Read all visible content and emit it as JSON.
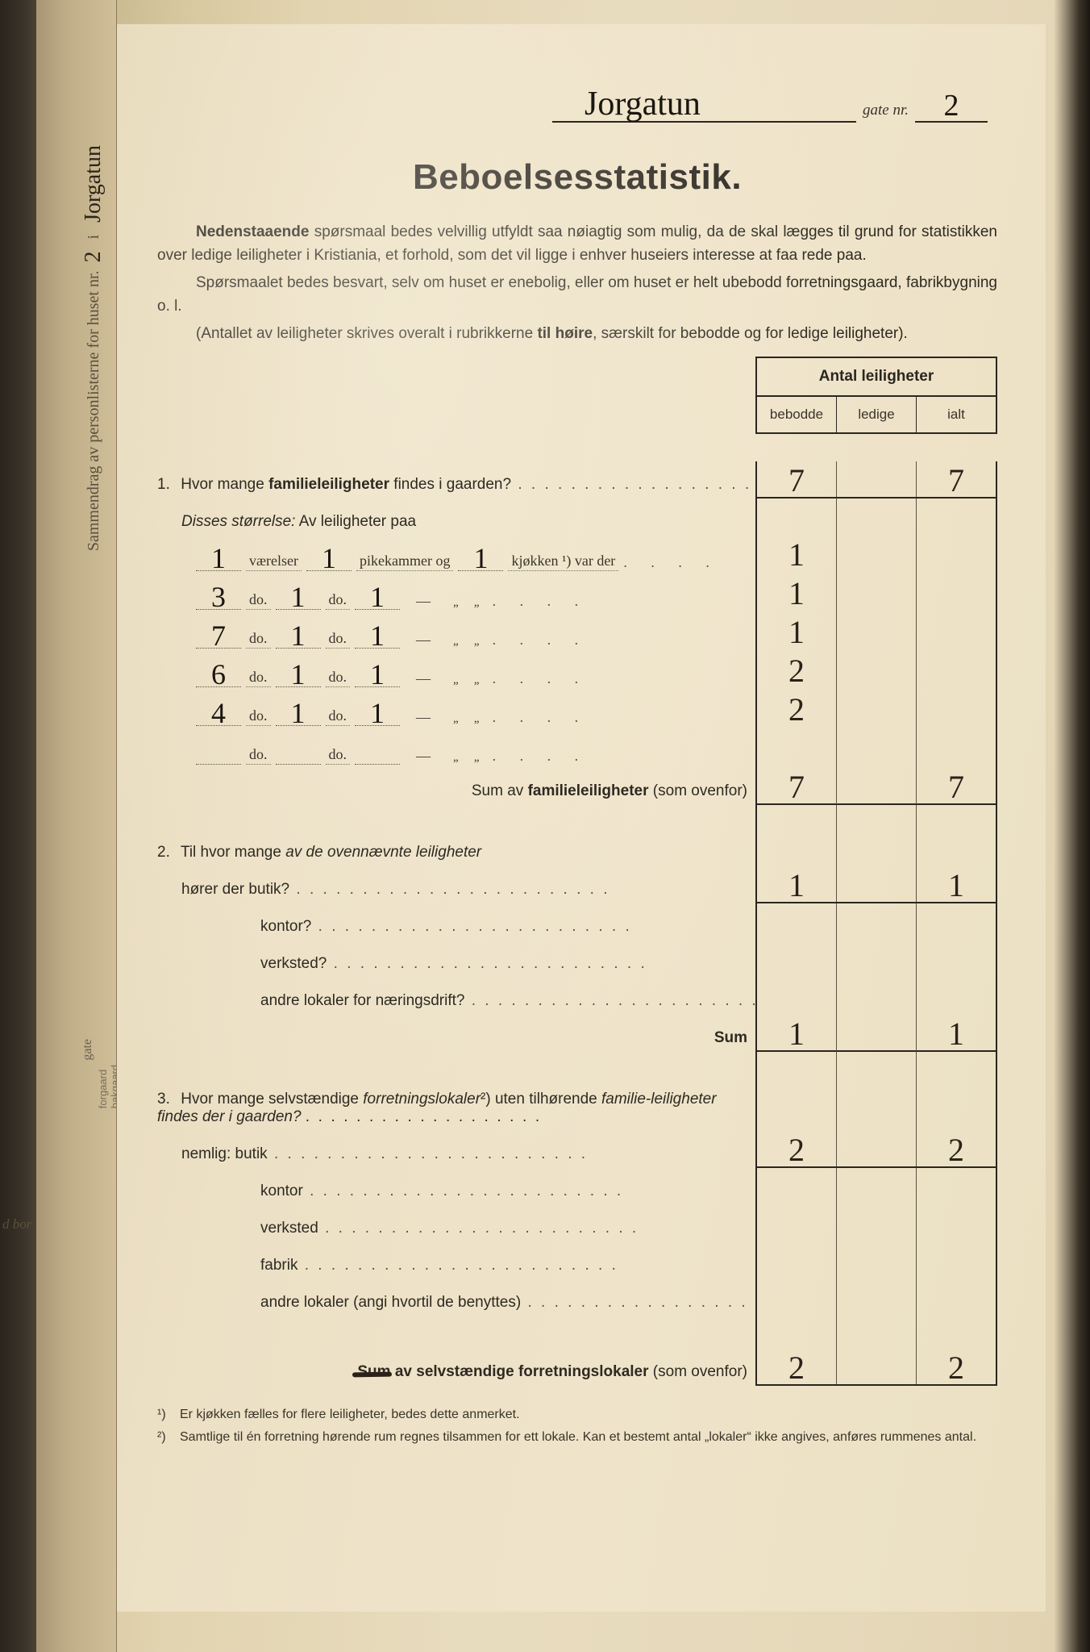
{
  "colors": {
    "paper": "#ece0c5",
    "paper_shadow": "#d8c8a0",
    "binding": "#2a241c",
    "ink_print": "#2a2620",
    "ink_handwriting": "#1a1610",
    "rule_line": "#2a2620",
    "dotted": "#5a5242"
  },
  "typography": {
    "title_family": "Arial, sans-serif",
    "title_size_pt": 33,
    "body_size_pt": 14,
    "handwriting_family": "Brush Script MT"
  },
  "side": {
    "summary_prefix": "Sammendrag av personlisterne for huset nr.",
    "house_nr_hw": "2",
    "i": "i",
    "street_hw": "Jorgatun",
    "gate": "gate",
    "forgaard": "forgaard",
    "bakgaard": "bakgaard",
    "bor": "d bor"
  },
  "header": {
    "street_hw": "Jorgatun",
    "gate_label": "gate nr.",
    "gate_nr_hw": "2"
  },
  "title": "Beboelsesstatistik.",
  "intro": {
    "p1": "Nedenstaaende spørsmaal bedes velvillig utfyldt saa nøiagtig som mulig, da de skal lægges til grund for statistikken over ledige leiligheter i Kristiania, et forhold, som det vil ligge i enhver huseiers interesse at faa rede paa.",
    "p2": "Spørsmaalet bedes besvart, selv om huset er enebolig, eller om huset er helt ubebodd forretningsgaard, fabrikbygning o. l.",
    "p3_a": "(Antallet av leiligheter skrives overalt i rubrikkerne ",
    "p3_b": "til høire",
    "p3_c": ", særskilt for bebodde og for ledige leiligheter)."
  },
  "table_header": {
    "title": "Antal leiligheter",
    "c1": "bebodde",
    "c2": "ledige",
    "c3": "ialt"
  },
  "q1": {
    "num": "1.",
    "text_a": "Hvor mange ",
    "text_b": "familieleiligheter",
    "text_c": " findes i gaarden?",
    "bebodde": "7",
    "ledige": "",
    "ialt": "7",
    "disses": "Disses størrelse:",
    "av": " Av leiligheter paa",
    "vaerelser": "værelser",
    "pikekammer": "pikekammer og",
    "kjokken": "kjøkken ¹) var der",
    "do": "do.",
    "rows": [
      {
        "v": "1",
        "p": "1",
        "k": "1",
        "dash": false,
        "beb": "1",
        "led": "",
        "ialt": ""
      },
      {
        "v": "3",
        "p": "1",
        "k": "1",
        "dash": true,
        "beb": "1",
        "led": "",
        "ialt": ""
      },
      {
        "v": "7",
        "p": "1",
        "k": "1",
        "dash": true,
        "beb": "1",
        "led": "",
        "ialt": ""
      },
      {
        "v": "6",
        "p": "1",
        "k": "1",
        "dash": true,
        "beb": "2",
        "led": "",
        "ialt": ""
      },
      {
        "v": "4",
        "p": "1",
        "k": "1",
        "dash": true,
        "beb": "2",
        "led": "",
        "ialt": ""
      },
      {
        "v": "",
        "p": "",
        "k": "",
        "dash": true,
        "beb": "",
        "led": "",
        "ialt": ""
      }
    ],
    "sum_label_a": "Sum av ",
    "sum_label_b": "familieleiligheter",
    "sum_label_c": " (som ovenfor)",
    "sum_beb": "7",
    "sum_led": "",
    "sum_ialt": "7"
  },
  "q2": {
    "num": "2.",
    "text": "Til hvor mange av de ovennævnte leiligheter",
    "rows": [
      {
        "label": "hører der butik?",
        "indent": false,
        "beb": "1",
        "led": "",
        "ialt": "1"
      },
      {
        "label": "kontor?",
        "indent": true,
        "beb": "",
        "led": "",
        "ialt": ""
      },
      {
        "label": "verksted?",
        "indent": true,
        "beb": "",
        "led": "",
        "ialt": ""
      },
      {
        "label": "andre lokaler for næringsdrift?",
        "indent": true,
        "beb": "",
        "led": "",
        "ialt": ""
      }
    ],
    "sum_label": "Sum",
    "sum_beb": "1",
    "sum_led": "",
    "sum_ialt": "1"
  },
  "q3": {
    "num": "3.",
    "text_a": "Hvor mange selvstændige ",
    "text_b": "forretningslokaler",
    "text_c": "²) uten tilhørende familieleiligheter findes der i gaarden?",
    "rows": [
      {
        "label": "nemlig: butik",
        "indent": false,
        "beb": "2",
        "led": "",
        "ialt": "2"
      },
      {
        "label": "kontor",
        "indent": true,
        "beb": "",
        "led": "",
        "ialt": ""
      },
      {
        "label": "verksted",
        "indent": true,
        "beb": "",
        "led": "",
        "ialt": ""
      },
      {
        "label": "fabrik",
        "indent": true,
        "beb": "",
        "led": "",
        "ialt": ""
      },
      {
        "label": "andre lokaler (angi hvortil de benyttes)",
        "indent": true,
        "beb": "",
        "led": "",
        "ialt": ""
      }
    ],
    "sum_strike": "Sum",
    "sum_label": " av selvstændige forretningslokaler",
    "sum_paren": " (som ovenfor)",
    "sum_beb": "2",
    "sum_led": "",
    "sum_ialt": "2"
  },
  "footnotes": {
    "f1n": "¹)",
    "f1": "Er kjøkken fælles for flere leiligheter, bedes dette anmerket.",
    "f2n": "²)",
    "f2": "Samtlige til én forretning hørende rum regnes tilsammen for ett lokale.  Kan et bestemt antal „lokaler“ ikke angives, anføres rummenes antal."
  }
}
